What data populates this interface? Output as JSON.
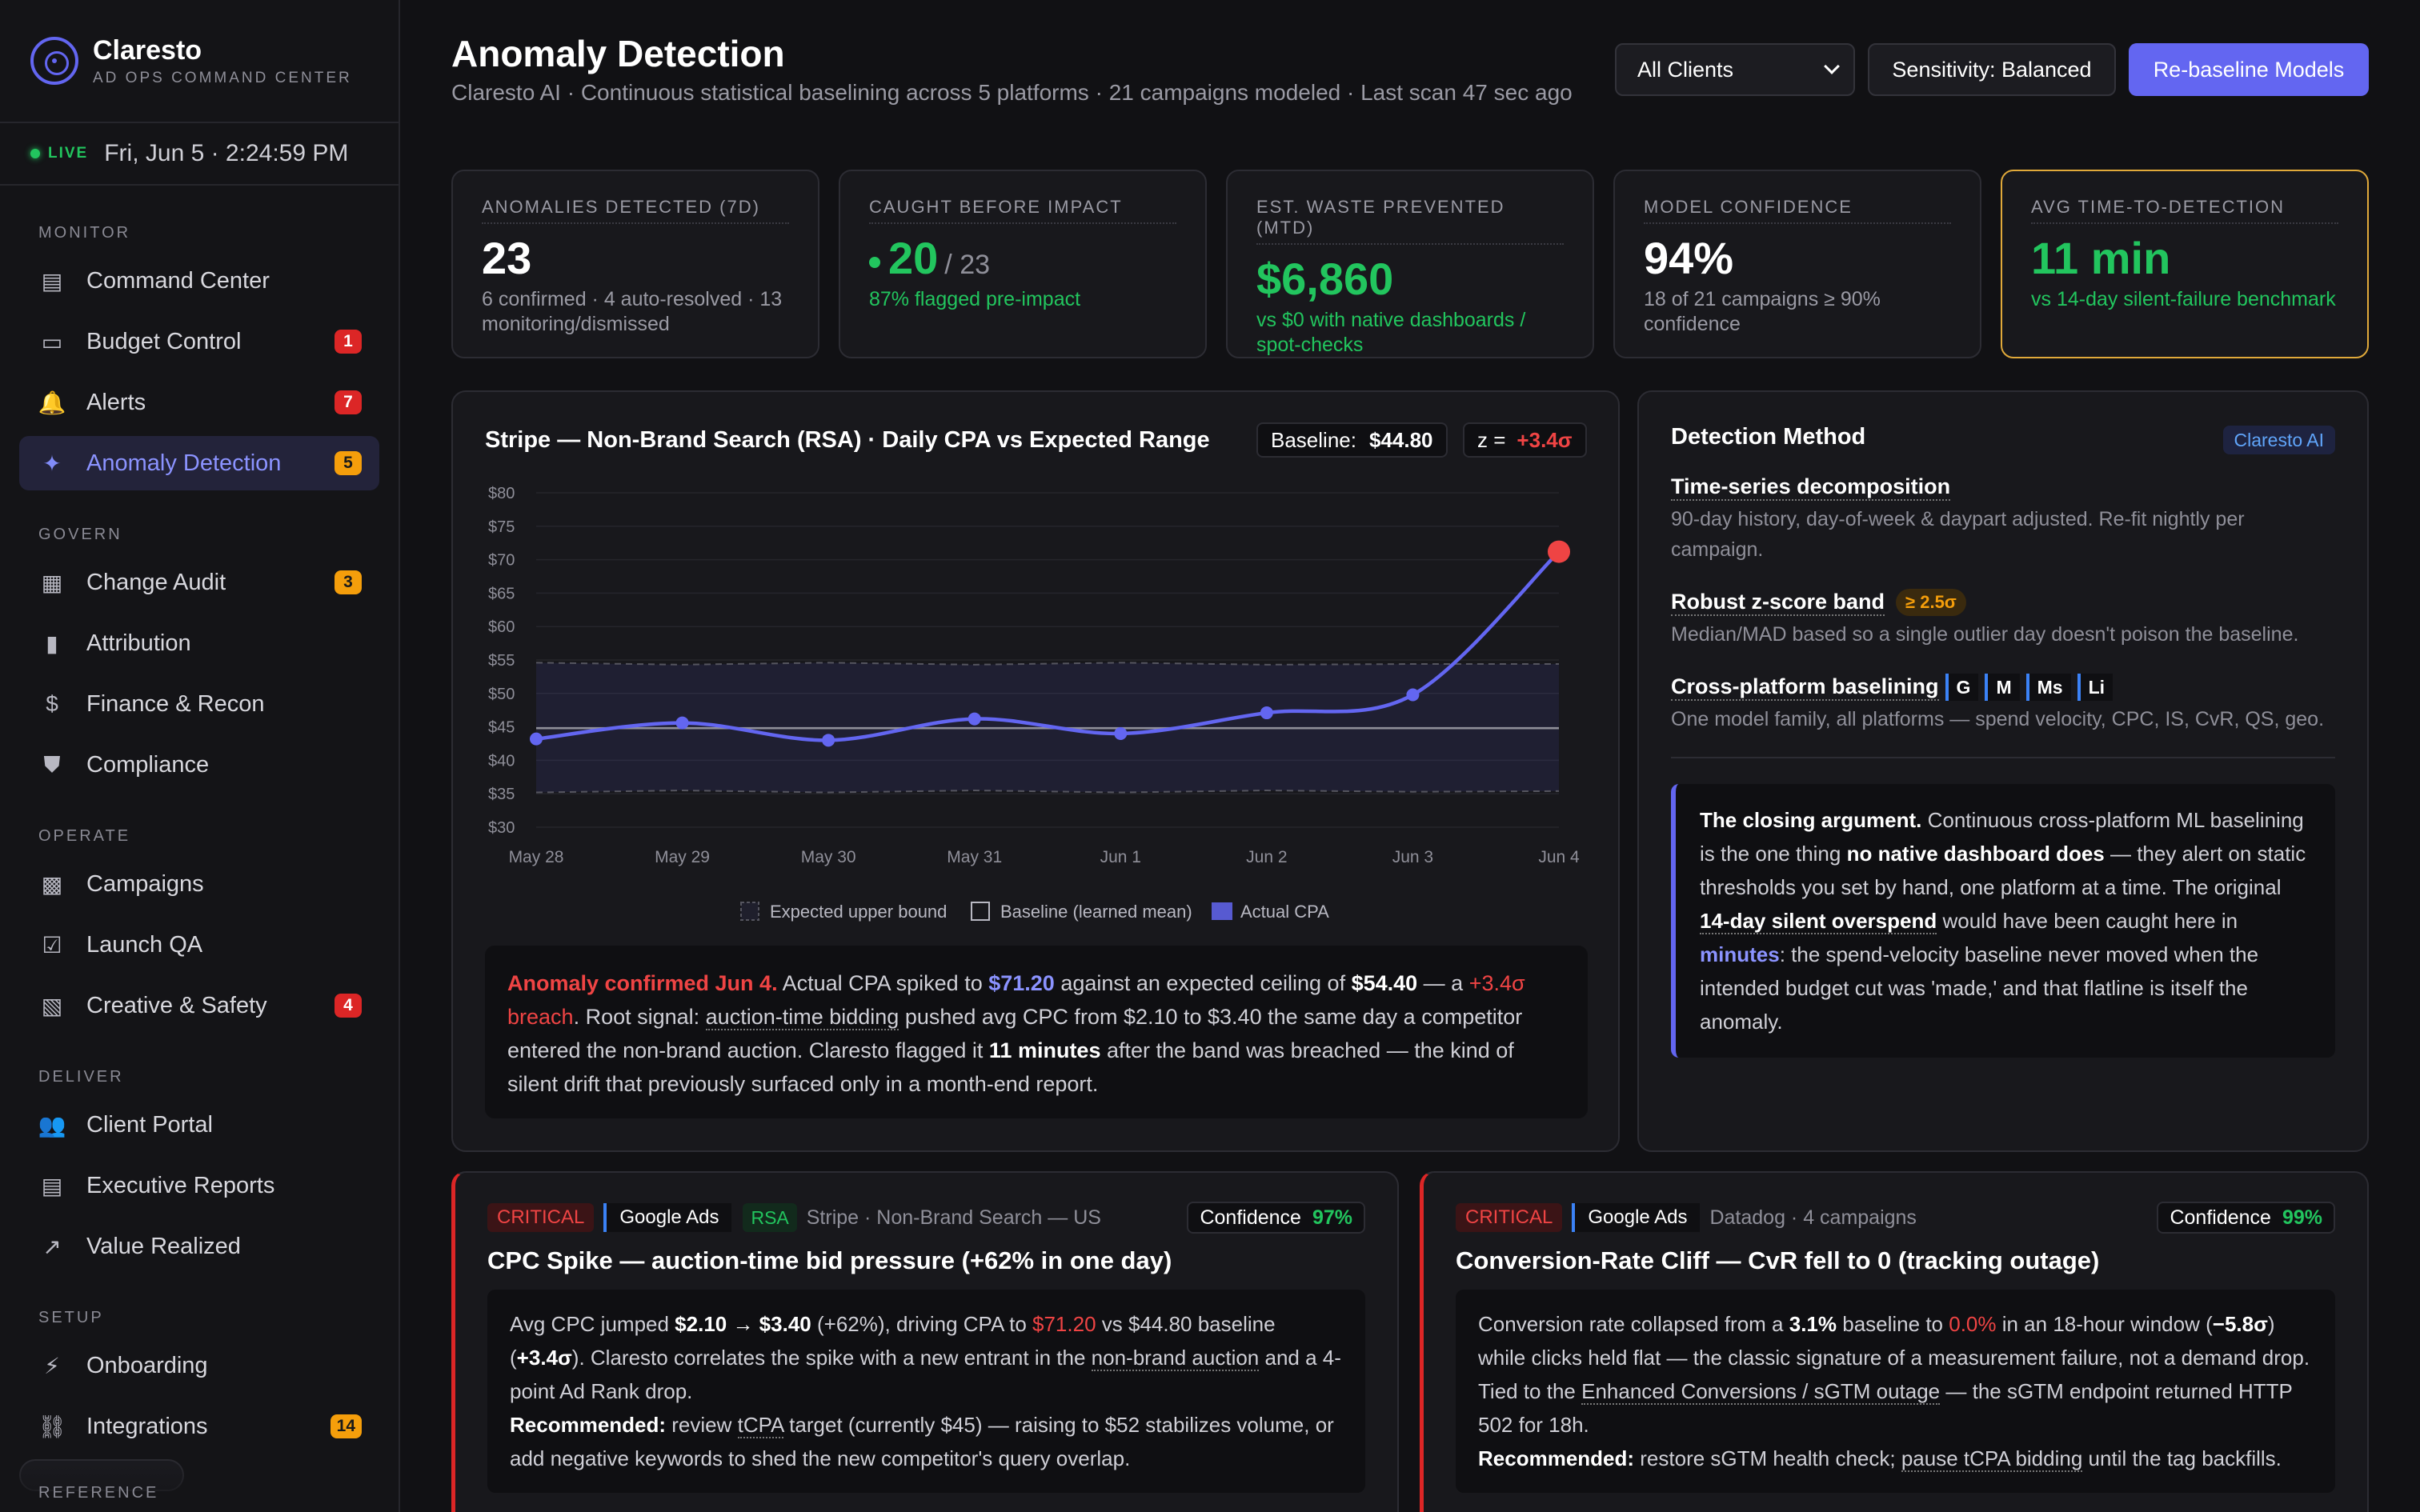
{
  "brand": {
    "name": "Claresto",
    "subtitle": "AD OPS COMMAND CENTER"
  },
  "live": {
    "label": "LIVE",
    "datetime": "Fri, Jun 5 · 2:24:59 PM"
  },
  "nav": {
    "sections": [
      {
        "title": "MONITOR",
        "items": [
          {
            "label": "Command Center",
            "icon": "layout-icon"
          },
          {
            "label": "Budget Control",
            "icon": "card-icon",
            "badge": "1",
            "badge_color": "red"
          },
          {
            "label": "Alerts",
            "icon": "bell-icon",
            "badge": "7",
            "badge_color": "red"
          },
          {
            "label": "Anomaly Detection",
            "icon": "sparkle-icon",
            "badge": "5",
            "badge_color": "orange",
            "active": true
          }
        ]
      },
      {
        "title": "GOVERN",
        "items": [
          {
            "label": "Change Audit",
            "icon": "clipboard-icon",
            "badge": "3",
            "badge_color": "orange"
          },
          {
            "label": "Attribution",
            "icon": "bar-chart-icon"
          },
          {
            "label": "Finance & Recon",
            "icon": "dollar-icon"
          },
          {
            "label": "Compliance",
            "icon": "shield-icon"
          }
        ]
      },
      {
        "title": "OPERATE",
        "items": [
          {
            "label": "Campaigns",
            "icon": "grid-icon"
          },
          {
            "label": "Launch QA",
            "icon": "checklist-icon"
          },
          {
            "label": "Creative & Safety",
            "icon": "image-icon",
            "badge": "4",
            "badge_color": "red"
          }
        ]
      },
      {
        "title": "DELIVER",
        "items": [
          {
            "label": "Client Portal",
            "icon": "users-icon"
          },
          {
            "label": "Executive Reports",
            "icon": "document-icon"
          },
          {
            "label": "Value Realized",
            "icon": "trend-icon"
          }
        ]
      },
      {
        "title": "SETUP",
        "items": [
          {
            "label": "Onboarding",
            "icon": "bolt-icon"
          },
          {
            "label": "Integrations",
            "icon": "link-icon",
            "badge": "14",
            "badge_color": "orange"
          }
        ]
      }
    ],
    "reference_label": "REFERENCE"
  },
  "header": {
    "title": "Anomaly Detection",
    "subtitle": "Claresto AI · Continuous statistical baselining across 5 platforms · 21 campaigns modeled · Last scan 47 sec ago",
    "client_select": "All Clients",
    "sensitivity_button": "Sensitivity: Balanced",
    "rebaseline_button": "Re-baseline Models",
    "accent_color": "#6366f1"
  },
  "kpis": [
    {
      "label": "ANOMALIES DETECTED (7D)",
      "value": "23",
      "note": "6 confirmed · 4 auto-resolved · 13 monitoring/dismissed"
    },
    {
      "label": "CAUGHT BEFORE IMPACT",
      "value": "20",
      "total": "/ 23",
      "note": "87% flagged pre-impact"
    },
    {
      "label": "EST. WASTE PREVENTED (MTD)",
      "value": "$6,860",
      "note": "vs $0 with native dashboards / spot-checks"
    },
    {
      "label": "MODEL CONFIDENCE",
      "value": "94%",
      "note": "18 of 21 campaigns ≥ 90% confidence"
    },
    {
      "label": "AVG TIME-TO-DETECTION",
      "value": "11 min",
      "note": "vs 14-day silent-failure benchmark"
    }
  ],
  "chart_panel": {
    "title": "Stripe — Non-Brand Search (RSA) · Daily CPA vs Expected Range",
    "baseline_label": "Baseline:",
    "baseline_value": "$44.80",
    "z_label": "z =",
    "z_value": "+3.4σ",
    "alert": {
      "p1": "Anomaly confirmed Jun 4.",
      "p2": " Actual CPA spiked to ",
      "p3": "$71.20",
      "p4": " against an expected ceiling of ",
      "p5": "$54.40",
      "p6": " — a ",
      "p7": "+3.4σ breach",
      "p8": ". Root signal: ",
      "p9": "auction-time bidding",
      "p10": " pushed avg CPC from $2.10 to $3.40 the same day a competitor entered the non-brand auction. Claresto flagged it ",
      "p11": "11 minutes",
      "p12": " after the band was breached — the kind of silent drift that previously surfaced only in a month-end report."
    }
  },
  "chart_data": {
    "type": "line",
    "title": "Stripe — Non-Brand Search (RSA) · Daily CPA vs Expected Range",
    "categories": [
      "May 28",
      "May 29",
      "May 30",
      "May 31",
      "Jun 1",
      "Jun 2",
      "Jun 3",
      "Jun 4"
    ],
    "series": [
      {
        "name": "Actual CPA",
        "values": [
          43.2,
          45.6,
          43.0,
          46.2,
          44.0,
          47.1,
          49.8,
          71.2
        ],
        "color": "#6366f1"
      },
      {
        "name": "Baseline (learned mean)",
        "values": [
          44.8,
          44.8,
          44.8,
          44.8,
          44.8,
          44.8,
          44.8,
          44.8
        ],
        "color": "#8f8f99"
      },
      {
        "name": "Expected upper bound",
        "values": [
          54.6,
          54.3,
          54.6,
          54.3,
          54.6,
          54.3,
          54.4,
          54.4
        ],
        "color": "#6a6a74"
      },
      {
        "name": "Expected lower bound",
        "values": [
          35.2,
          35.5,
          35.2,
          35.5,
          35.2,
          35.5,
          35.3,
          35.4
        ],
        "color": "#6a6a74"
      }
    ],
    "legend": [
      "Expected upper bound",
      "Baseline (learned mean)",
      "Actual CPA"
    ],
    "yticks": [
      "$80",
      "$75",
      "$70",
      "$65",
      "$60",
      "$55",
      "$50",
      "$45",
      "$40",
      "$35",
      "$30"
    ],
    "ylim": [
      30,
      80
    ],
    "grid": true,
    "legend_position": "bottom"
  },
  "detection": {
    "title": "Detection Method",
    "tag": "Claresto AI",
    "items": [
      {
        "title": "Time-series decomposition",
        "desc": "90-day history, day-of-week & daypart adjusted. Re-fit nightly per campaign."
      },
      {
        "title": "Robust z-score band",
        "chip": "≥ 2.5σ",
        "desc": "Median/MAD based so a single outlier day doesn't poison the baseline."
      },
      {
        "title": "Cross-platform baselining",
        "platforms": [
          "G",
          "M",
          "Ms",
          "Li"
        ],
        "desc": "One model family, all platforms — spend velocity, CPC, IS, CvR, QS, geo."
      }
    ],
    "closing": {
      "p1": "The closing argument.",
      "p2": " Continuous cross-platform ML baselining is the one thing ",
      "p3": "no native dashboard does",
      "p4": " — they alert on static thresholds you set by hand, one platform at a time. The original ",
      "p5": "14-day silent overspend",
      "p6": " would have been caught here in ",
      "p7": "minutes",
      "p8": ": the spend-velocity baseline never moved when the intended budget cut was 'made,' and that flatline is itself the anomaly."
    }
  },
  "anomaly_cards": [
    {
      "severity": "CRITICAL",
      "platform": "Google Ads",
      "type_tag": "RSA",
      "meta": "Stripe · Non-Brand Search — US",
      "confidence_label": "Confidence",
      "confidence": "97%",
      "title": "CPC Spike — auction-time bid pressure (+62% in one day)",
      "body": {
        "p1": "Avg CPC jumped ",
        "p2": "$2.10 → $3.40",
        "p3": " (+62%), driving CPA to ",
        "p4": "$71.20",
        "p5": " vs $44.80 baseline (",
        "p6": "+3.4σ",
        "p7": "). Claresto correlates the spike with a new entrant in the ",
        "p8": "non-brand auction",
        "p9": " and a 4-point Ad Rank drop.",
        "rec_label": "Recommended:",
        "rec_1": " review ",
        "rec_2": "tCPA",
        "rec_3": " target (currently $45) — raising to $52 stabilizes volume, or add negative keywords to shed the new competitor's query overlap."
      }
    },
    {
      "severity": "CRITICAL",
      "platform": "Google Ads",
      "meta": "Datadog · 4 campaigns",
      "confidence_label": "Confidence",
      "confidence": "99%",
      "title": "Conversion-Rate Cliff — CvR fell to 0 (tracking outage)",
      "body": {
        "p1": "Conversion rate collapsed from a ",
        "p2": "3.1%",
        "p3": " baseline to ",
        "p4": "0.0%",
        "p5": " in an 18-hour window (",
        "p6": "−5.8σ",
        "p7": ") while clicks held flat — the classic signature of a measurement failure, not a demand drop. Tied to the ",
        "p8": "Enhanced Conversions / sGTM outage",
        "p9": " — the sGTM endpoint returned HTTP 502 for 18h.",
        "rec_label": "Recommended:",
        "rec_1": " restore sGTM health check; ",
        "rec_2": "pause tCPA bidding",
        "rec_3": " until the tag backfills."
      }
    }
  ]
}
